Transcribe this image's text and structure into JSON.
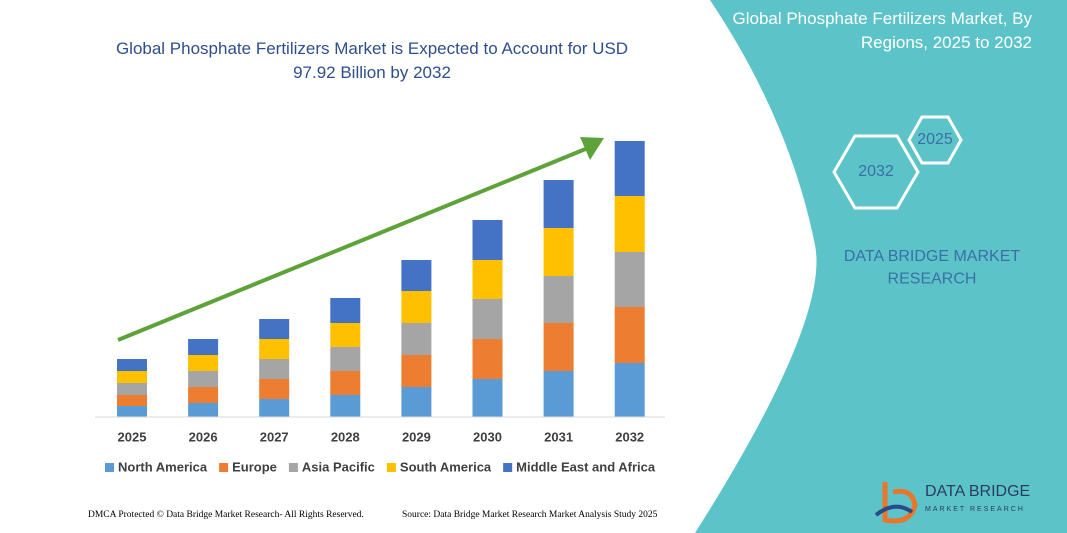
{
  "chart_data": {
    "type": "stacked-bar",
    "title": "Global Phosphate Fertilizers Market is Expected to Account for USD 97.92 Billion by 2032",
    "categories": [
      "2025",
      "2026",
      "2027",
      "2028",
      "2029",
      "2030",
      "2031",
      "2032"
    ],
    "series": [
      {
        "name": "North America",
        "color": "#5b9bd5",
        "values": [
          11,
          14,
          18,
          22,
          30,
          38,
          46,
          54
        ]
      },
      {
        "name": "Europe",
        "color": "#ed7d31",
        "values": [
          11,
          16,
          20,
          24,
          32,
          40,
          48,
          56
        ]
      },
      {
        "name": "Asia Pacific",
        "color": "#a5a5a5",
        "values": [
          12,
          16,
          20,
          24,
          32,
          40,
          47,
          55
        ]
      },
      {
        "name": "South America",
        "color": "#ffc000",
        "values": [
          12,
          16,
          20,
          24,
          32,
          39,
          48,
          56
        ]
      },
      {
        "name": "Middle East and Africa",
        "color": "#4472c4",
        "values": [
          12,
          16,
          20,
          25,
          31,
          40,
          48,
          55
        ]
      }
    ],
    "legend": "bottom"
  },
  "panel": {
    "title": "Global Phosphate Fertilizers Market, By Regions, 2025 to 2032",
    "hex_small": "2025",
    "hex_large": "2032",
    "brand": "DATA BRIDGE MARKET RESEARCH"
  },
  "footer": {
    "left": "DMCA Protected © Data Bridge Market Research- All Rights Reserved.",
    "right": "Source: Data Bridge Market Research Market Analysis Study 2025"
  },
  "logo": {
    "name": "DATA BRIDGE",
    "tagline": "MARKET RESEARCH"
  }
}
